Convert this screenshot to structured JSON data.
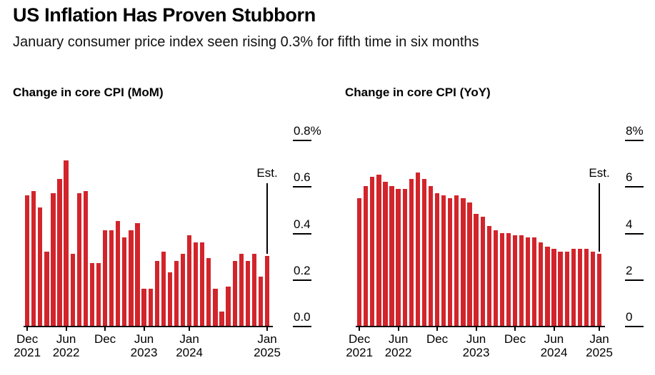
{
  "header": {
    "title": "US Inflation Has Proven Stubborn",
    "subtitle": "January consumer price index seen rising 0.3% for fifth time in six months"
  },
  "colors": {
    "bar_red": "#d2252b",
    "axis": "#000000",
    "text": "#000000",
    "background": "#ffffff"
  },
  "chart_data": [
    {
      "type": "bar",
      "title": "Change in core CPI (MoM)",
      "unit": "%",
      "ylim": [
        0,
        0.8
      ],
      "grid": "off",
      "legend": "none",
      "y_axis_side": "right",
      "categories": [
        "Dec 2021",
        "Jan 2022",
        "Feb 2022",
        "Mar 2022",
        "Apr 2022",
        "May 2022",
        "Jun 2022",
        "Jul 2022",
        "Aug 2022",
        "Sep 2022",
        "Oct 2022",
        "Nov 2022",
        "Dec 2022",
        "Jan 2023",
        "Feb 2023",
        "Mar 2023",
        "Apr 2023",
        "May 2023",
        "Jun 2023",
        "Jul 2023",
        "Aug 2023",
        "Sep 2023",
        "Oct 2023",
        "Nov 2023",
        "Dec 2023",
        "Jan 2024",
        "Feb 2024",
        "Mar 2024",
        "Apr 2024",
        "May 2024",
        "Jun 2024",
        "Jul 2024",
        "Aug 2024",
        "Sep 2024",
        "Oct 2024",
        "Nov 2024",
        "Dec 2024",
        "Jan 2025"
      ],
      "values": [
        0.56,
        0.58,
        0.51,
        0.32,
        0.57,
        0.63,
        0.71,
        0.31,
        0.57,
        0.58,
        0.27,
        0.27,
        0.41,
        0.41,
        0.45,
        0.38,
        0.41,
        0.44,
        0.16,
        0.16,
        0.28,
        0.32,
        0.23,
        0.28,
        0.31,
        0.39,
        0.36,
        0.36,
        0.29,
        0.16,
        0.06,
        0.17,
        0.28,
        0.31,
        0.28,
        0.31,
        0.21,
        0.3
      ],
      "yticks": [
        {
          "label": "0.8%",
          "value": 0.8
        },
        {
          "label": "0.6",
          "value": 0.6
        },
        {
          "label": "0.4",
          "value": 0.4
        },
        {
          "label": "0.2",
          "value": 0.2
        },
        {
          "label": "0.0",
          "value": 0
        }
      ],
      "xticks": [
        {
          "index": 0,
          "month": "Dec",
          "year": "2021"
        },
        {
          "index": 6,
          "month": "Jun",
          "year": "2022"
        },
        {
          "index": 12,
          "month": "Dec",
          "year": ""
        },
        {
          "index": 18,
          "month": "Jun",
          "year": "2023"
        },
        {
          "index": 25,
          "month": "Jan",
          "year": "2024"
        },
        {
          "index": 37,
          "month": "Jan",
          "year": "2025"
        }
      ],
      "estimate": {
        "label": "Est.",
        "index": 37,
        "value": 0.3
      }
    },
    {
      "type": "bar",
      "title": "Change in core CPI (YoY)",
      "unit": "%",
      "ylim": [
        0,
        8
      ],
      "grid": "off",
      "legend": "none",
      "y_axis_side": "right",
      "categories": [
        "Dec 2021",
        "Jan 2022",
        "Feb 2022",
        "Mar 2022",
        "Apr 2022",
        "May 2022",
        "Jun 2022",
        "Jul 2022",
        "Aug 2022",
        "Sep 2022",
        "Oct 2022",
        "Nov 2022",
        "Dec 2022",
        "Jan 2023",
        "Feb 2023",
        "Mar 2023",
        "Apr 2023",
        "May 2023",
        "Jun 2023",
        "Jul 2023",
        "Aug 2023",
        "Sep 2023",
        "Oct 2023",
        "Nov 2023",
        "Dec 2023",
        "Jan 2024",
        "Feb 2024",
        "Mar 2024",
        "Apr 2024",
        "May 2024",
        "Jun 2024",
        "Jul 2024",
        "Aug 2024",
        "Sep 2024",
        "Oct 2024",
        "Nov 2024",
        "Dec 2024",
        "Jan 2025"
      ],
      "values": [
        5.5,
        6.0,
        6.4,
        6.5,
        6.2,
        6.0,
        5.9,
        5.9,
        6.3,
        6.6,
        6.3,
        6.0,
        5.7,
        5.6,
        5.5,
        5.6,
        5.5,
        5.3,
        4.8,
        4.7,
        4.3,
        4.1,
        4.0,
        4.0,
        3.9,
        3.9,
        3.8,
        3.8,
        3.6,
        3.4,
        3.3,
        3.2,
        3.2,
        3.3,
        3.3,
        3.3,
        3.2,
        3.1
      ],
      "yticks": [
        {
          "label": "8%",
          "value": 8
        },
        {
          "label": "6",
          "value": 6
        },
        {
          "label": "4",
          "value": 4
        },
        {
          "label": "2",
          "value": 2
        },
        {
          "label": "0",
          "value": 0
        }
      ],
      "xticks": [
        {
          "index": 0,
          "month": "Dec",
          "year": "2021"
        },
        {
          "index": 6,
          "month": "Jun",
          "year": "2022"
        },
        {
          "index": 12,
          "month": "Dec",
          "year": ""
        },
        {
          "index": 18,
          "month": "Jun",
          "year": "2023"
        },
        {
          "index": 24,
          "month": "Dec",
          "year": ""
        },
        {
          "index": 30,
          "month": "Jun",
          "year": "2024"
        },
        {
          "index": 37,
          "month": "Jan",
          "year": "2025"
        }
      ],
      "estimate": {
        "label": "Est.",
        "index": 37,
        "value": 3.1
      }
    }
  ]
}
